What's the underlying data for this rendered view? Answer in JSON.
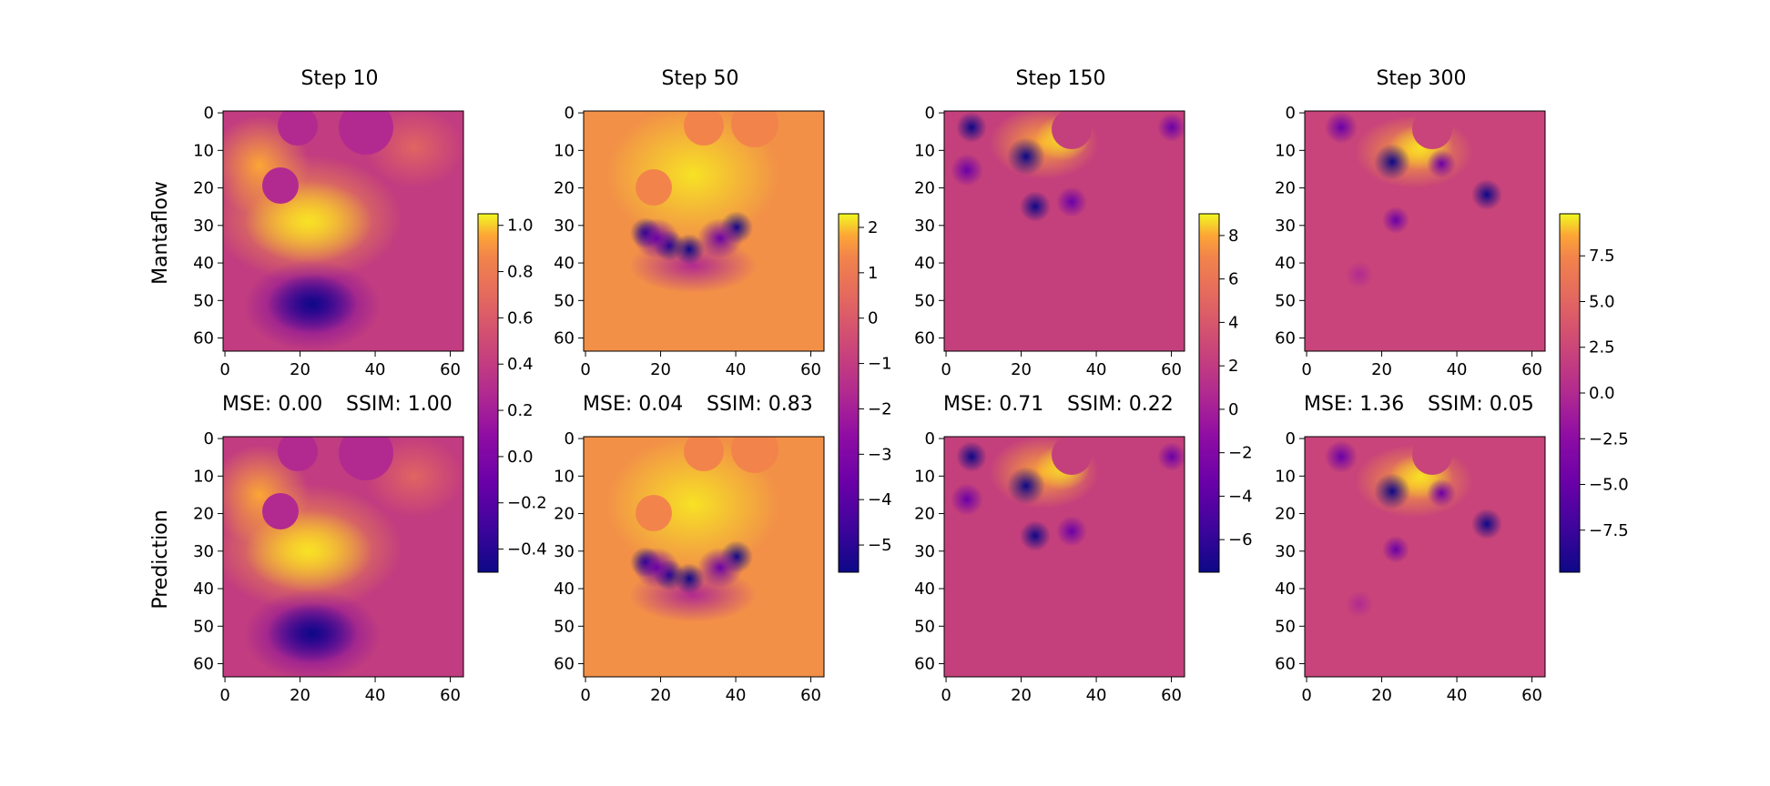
{
  "figure": {
    "row_labels": [
      "Mantaflow",
      "Prediction"
    ]
  },
  "panels": [
    {
      "title": "Step 10",
      "mse": "MSE: 0.00",
      "ssim": "SSIM: 1.00",
      "colorbar": {
        "min": -0.5,
        "max": 1.05,
        "ticks": [
          "1.0",
          "0.8",
          "0.6",
          "0.4",
          "0.2",
          "0.0",
          "−0.2",
          "−0.4"
        ],
        "tick_values": [
          1.0,
          0.8,
          0.6,
          0.4,
          0.2,
          0.0,
          -0.2,
          -0.4
        ]
      }
    },
    {
      "title": "Step 50",
      "mse": "MSE: 0.04",
      "ssim": "SSIM: 0.83",
      "colorbar": {
        "min": -5.6,
        "max": 2.3,
        "ticks": [
          "2",
          "1",
          "0",
          "−1",
          "−2",
          "−3",
          "−4",
          "−5"
        ],
        "tick_values": [
          2,
          1,
          0,
          -1,
          -2,
          -3,
          -4,
          -5
        ]
      }
    },
    {
      "title": "Step 150",
      "mse": "MSE: 0.71",
      "ssim": "SSIM: 0.22",
      "colorbar": {
        "min": -7.5,
        "max": 9.0,
        "ticks": [
          "8",
          "6",
          "4",
          "2",
          "0",
          "−2",
          "−4",
          "−6"
        ],
        "tick_values": [
          8,
          6,
          4,
          2,
          0,
          -2,
          -4,
          -6
        ]
      }
    },
    {
      "title": "Step 300",
      "mse": "MSE: 1.36",
      "ssim": "SSIM: 0.05",
      "colorbar": {
        "min": -9.8,
        "max": 9.8,
        "ticks": [
          "7.5",
          "5.0",
          "2.5",
          "0.0",
          "−2.5",
          "−5.0",
          "−7.5"
        ],
        "tick_values": [
          7.5,
          5.0,
          2.5,
          0.0,
          -2.5,
          -5.0,
          -7.5
        ]
      }
    }
  ],
  "chart_data": {
    "type": "heatmap",
    "colormap": "plasma",
    "grid_size": [
      64,
      64
    ],
    "x_ticks": [
      "0",
      "20",
      "40",
      "60"
    ],
    "y_ticks": [
      "0",
      "10",
      "20",
      "30",
      "40",
      "50",
      "60"
    ],
    "x_tick_values": [
      0,
      20,
      40,
      60
    ],
    "y_tick_values": [
      0,
      10,
      20,
      30,
      40,
      50,
      60
    ],
    "panels": [
      {
        "step": "Step 10",
        "mantaflow": "field",
        "prediction": "field",
        "mse": 0.0,
        "ssim": 1.0
      },
      {
        "step": "Step 50",
        "mantaflow": "field",
        "prediction": "field",
        "mse": 0.04,
        "ssim": 0.83
      },
      {
        "step": "Step 150",
        "mantaflow": "field",
        "prediction": "field",
        "mse": 0.71,
        "ssim": 0.22
      },
      {
        "step": "Step 300",
        "mantaflow": "field",
        "prediction": "field",
        "mse": 1.36,
        "ssim": 0.05
      }
    ]
  }
}
